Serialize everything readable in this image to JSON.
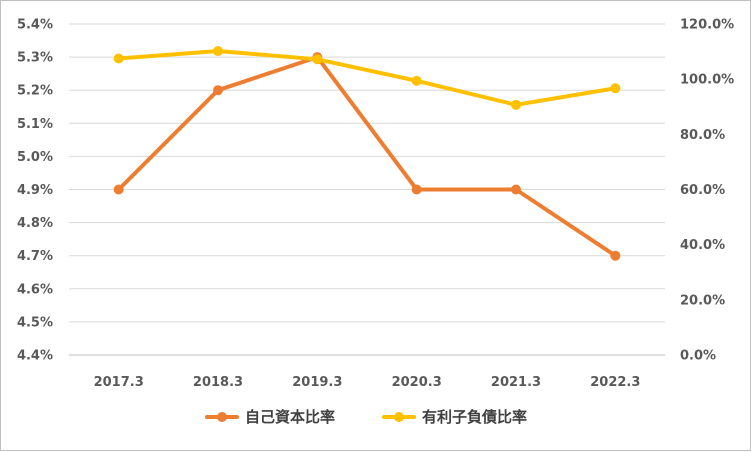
{
  "chart_data": {
    "type": "line",
    "categories": [
      "2017.3",
      "2018.3",
      "2019.3",
      "2020.3",
      "2021.3",
      "2022.3"
    ],
    "series": [
      {
        "name": "自己資本比率",
        "axis": "left",
        "color": "#ed7d31",
        "values": [
          4.9,
          5.2,
          5.3,
          4.9,
          4.9,
          4.7
        ]
      },
      {
        "name": "有利子負債比率",
        "axis": "right",
        "color": "#ffc000",
        "values": [
          107.5,
          110.2,
          107.2,
          99.4,
          90.7,
          96.7
        ]
      }
    ],
    "y_left": {
      "min": 4.4,
      "max": 5.4,
      "step": 0.1,
      "ticks": [
        "4.4%",
        "4.5%",
        "4.6%",
        "4.7%",
        "4.8%",
        "4.9%",
        "5.0%",
        "5.1%",
        "5.2%",
        "5.3%",
        "5.4%"
      ]
    },
    "y_right": {
      "min": 0,
      "max": 120,
      "step": 20,
      "ticks": [
        "0.0%",
        "20.0%",
        "40.0%",
        "60.0%",
        "80.0%",
        "100.0%",
        "120.0%"
      ]
    },
    "grid": true,
    "legend_position": "bottom"
  }
}
